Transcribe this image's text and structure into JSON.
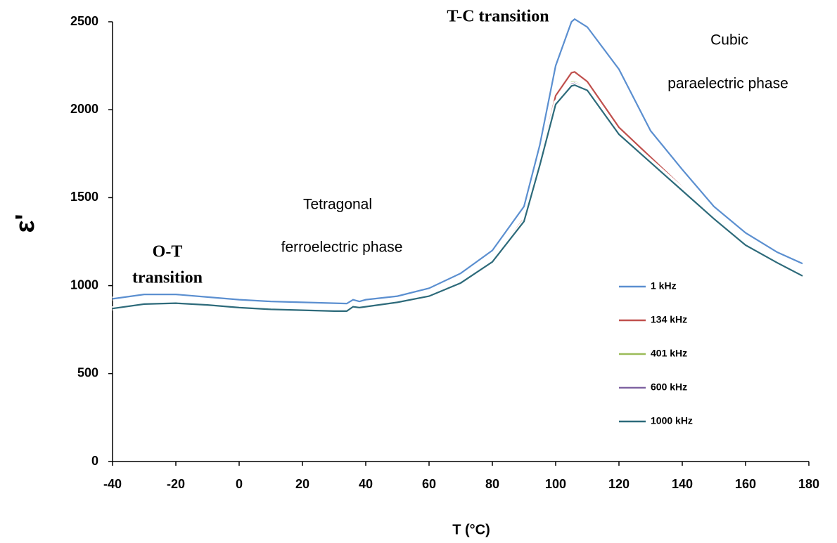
{
  "chart_data": {
    "type": "line",
    "xlabel": "T (°C)",
    "ylabel": "ε'",
    "annotations": [
      "T-C transition",
      "O-T",
      "transition",
      "Tetragonal",
      "ferroelectric phase",
      "Cubic",
      "paraelectric phase"
    ],
    "x": [
      -40,
      -30,
      -20,
      -10,
      0,
      10,
      20,
      30,
      34,
      36,
      38,
      40,
      50,
      60,
      70,
      80,
      90,
      95,
      100,
      105,
      106,
      110,
      120,
      130,
      140,
      150,
      160,
      170,
      178
    ],
    "series": [
      {
        "name": "1 kHz",
        "color": "#5b8fd0",
        "values": [
          925,
          950,
          950,
          935,
          920,
          910,
          905,
          900,
          898,
          920,
          910,
          920,
          940,
          985,
          1070,
          1200,
          1450,
          1800,
          2250,
          2500,
          2515,
          2470,
          2230,
          1880,
          1660,
          1450,
          1300,
          1190,
          1125
        ]
      },
      {
        "name": "134 kHz",
        "color": "#c0504d",
        "values": [
          870,
          895,
          900,
          890,
          875,
          865,
          860,
          855,
          855,
          880,
          875,
          880,
          905,
          940,
          1020,
          1140,
          1380,
          1700,
          2080,
          2210,
          2215,
          2160,
          1900,
          1730,
          1560,
          1390,
          1240,
          1140,
          1060
        ]
      },
      {
        "name": "401 kHz",
        "color": "#9bbb59",
        "values": [
          870,
          895,
          900,
          890,
          875,
          865,
          860,
          855,
          855,
          878,
          873,
          878,
          900,
          935,
          1010,
          1130,
          1360,
          1680,
          2040,
          2155,
          2160,
          2120,
          1870,
          1710,
          1550,
          1385,
          1235,
          1135,
          1055
        ]
      },
      {
        "name": "600 kHz",
        "color": "#8064a2",
        "values": [
          870,
          895,
          900,
          890,
          875,
          865,
          860,
          855,
          855,
          878,
          873,
          878,
          902,
          937,
          1012,
          1132,
          1362,
          1682,
          2035,
          2145,
          2150,
          2115,
          1865,
          1705,
          1545,
          1385,
          1235,
          1135,
          1055
        ]
      },
      {
        "name": "1000 kHz",
        "color": "#2d6a7a",
        "values": [
          870,
          895,
          900,
          890,
          875,
          865,
          860,
          855,
          855,
          880,
          875,
          880,
          905,
          940,
          1015,
          1135,
          1365,
          1685,
          2030,
          2135,
          2140,
          2110,
          1860,
          1700,
          1540,
          1380,
          1230,
          1130,
          1055
        ]
      }
    ],
    "xlim": [
      -40,
      180
    ],
    "xticks": [
      -40,
      -20,
      0,
      20,
      40,
      60,
      80,
      100,
      120,
      140,
      160,
      180
    ],
    "ylim": [
      0,
      2500
    ],
    "yticks": [
      0,
      500,
      1000,
      1500,
      2000,
      2500
    ],
    "grid": false,
    "legend": "right"
  }
}
